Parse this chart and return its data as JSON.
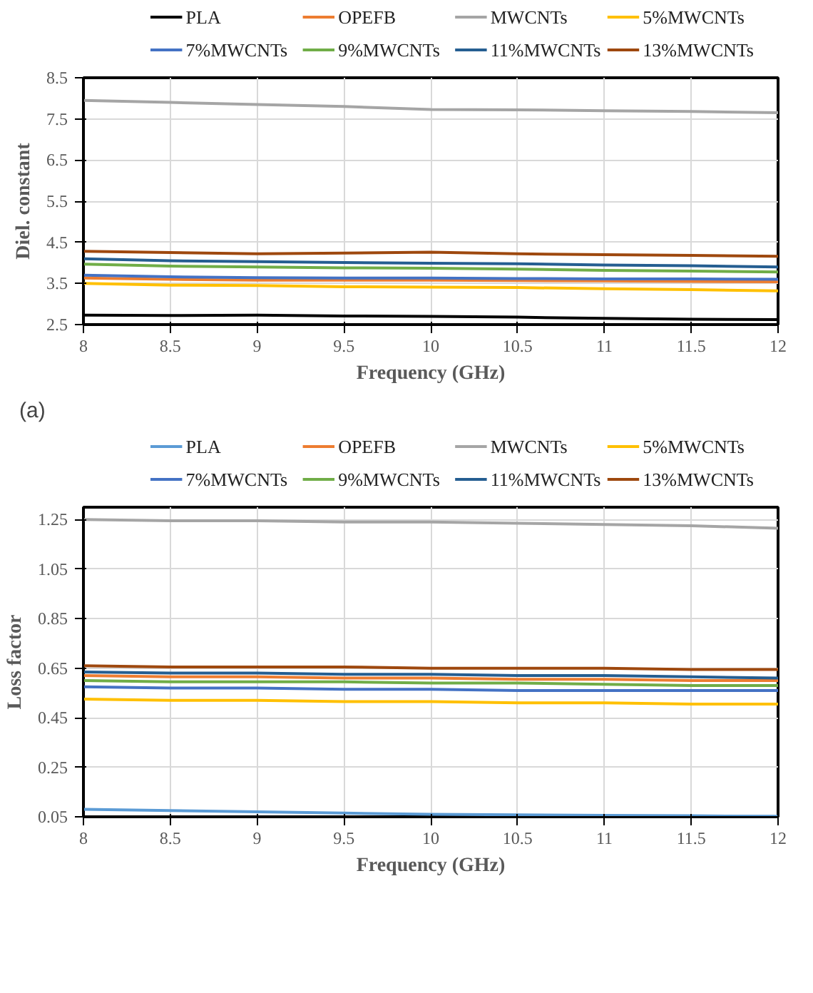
{
  "chart_data": [
    {
      "type": "line",
      "xlabel": "Frequency (GHz)",
      "ylabel": "Diel. constant",
      "annotations": [
        "(a)"
      ],
      "x": [
        8,
        8.5,
        9,
        9.5,
        10,
        10.5,
        11,
        11.5,
        12
      ],
      "xlim": [
        8,
        12
      ],
      "xticks": [
        8,
        8.5,
        9,
        9.5,
        10,
        10.5,
        11,
        11.5,
        12
      ],
      "ylim": [
        2.5,
        8.5
      ],
      "yticks": [
        2.5,
        3.5,
        4.5,
        5.5,
        6.5,
        7.5,
        8.5
      ],
      "grid": true,
      "legend": "top",
      "marker": "none",
      "line_style": "solid",
      "series": [
        {
          "name": "PLA",
          "color": "#000000",
          "values": [
            2.73,
            2.72,
            2.73,
            2.71,
            2.7,
            2.68,
            2.65,
            2.63,
            2.62
          ]
        },
        {
          "name": "OPEFB",
          "color": "#ed7d31",
          "values": [
            3.63,
            3.6,
            3.58,
            3.58,
            3.58,
            3.57,
            3.56,
            3.55,
            3.54
          ]
        },
        {
          "name": "MWCNTs",
          "color": "#a5a5a5",
          "values": [
            7.95,
            7.9,
            7.85,
            7.8,
            7.73,
            7.72,
            7.7,
            7.68,
            7.65
          ]
        },
        {
          "name": "5%MWCNTs",
          "color": "#ffc000",
          "values": [
            3.5,
            3.46,
            3.45,
            3.42,
            3.41,
            3.4,
            3.37,
            3.35,
            3.32
          ]
        },
        {
          "name": "7%MWCNTs",
          "color": "#4472c4",
          "values": [
            3.7,
            3.66,
            3.64,
            3.63,
            3.63,
            3.62,
            3.61,
            3.61,
            3.6
          ]
        },
        {
          "name": "9%MWCNTs",
          "color": "#70ad47",
          "values": [
            3.97,
            3.92,
            3.9,
            3.88,
            3.87,
            3.85,
            3.82,
            3.8,
            3.78
          ]
        },
        {
          "name": "11%MWCNTs",
          "color": "#255e91",
          "values": [
            4.1,
            4.05,
            4.03,
            4.01,
            3.99,
            3.98,
            3.95,
            3.93,
            3.9
          ]
        },
        {
          "name": "13%MWCNTs",
          "color": "#9e480e",
          "values": [
            4.28,
            4.25,
            4.22,
            4.24,
            4.26,
            4.22,
            4.2,
            4.18,
            4.16
          ]
        }
      ]
    },
    {
      "type": "line",
      "xlabel": "Frequency (GHz)",
      "ylabel": "Loss factor",
      "x": [
        8,
        8.5,
        9,
        9.5,
        10,
        10.5,
        11,
        11.5,
        12
      ],
      "xlim": [
        8,
        12
      ],
      "xticks": [
        8,
        8.5,
        9,
        9.5,
        10,
        10.5,
        11,
        11.5,
        12
      ],
      "ylim": [
        0.05,
        1.3
      ],
      "yticks": [
        0.05,
        0.25,
        0.45,
        0.65,
        0.85,
        1.05,
        1.25
      ],
      "grid": true,
      "legend": "top",
      "marker": "none",
      "line_style": "solid",
      "series": [
        {
          "name": "PLA",
          "color": "#5b9bd5",
          "values": [
            0.08,
            0.075,
            0.07,
            0.065,
            0.06,
            0.058,
            0.056,
            0.054,
            0.052
          ]
        },
        {
          "name": "OPEFB",
          "color": "#ed7d31",
          "values": [
            0.62,
            0.615,
            0.615,
            0.61,
            0.61,
            0.605,
            0.605,
            0.6,
            0.6
          ]
        },
        {
          "name": "MWCNTs",
          "color": "#a5a5a5",
          "values": [
            1.25,
            1.245,
            1.245,
            1.24,
            1.24,
            1.235,
            1.23,
            1.225,
            1.215
          ]
        },
        {
          "name": "5%MWCNTs",
          "color": "#ffc000",
          "values": [
            0.525,
            0.52,
            0.52,
            0.515,
            0.515,
            0.51,
            0.51,
            0.505,
            0.505
          ]
        },
        {
          "name": "7%MWCNTs",
          "color": "#4472c4",
          "values": [
            0.575,
            0.57,
            0.57,
            0.565,
            0.565,
            0.56,
            0.56,
            0.56,
            0.56
          ]
        },
        {
          "name": "9%MWCNTs",
          "color": "#70ad47",
          "values": [
            0.6,
            0.595,
            0.595,
            0.595,
            0.59,
            0.59,
            0.585,
            0.58,
            0.58
          ]
        },
        {
          "name": "11%MWCNTs",
          "color": "#255e91",
          "values": [
            0.635,
            0.63,
            0.63,
            0.625,
            0.625,
            0.62,
            0.62,
            0.615,
            0.61
          ]
        },
        {
          "name": "13%MWCNTs",
          "color": "#9e480e",
          "values": [
            0.66,
            0.655,
            0.655,
            0.655,
            0.65,
            0.65,
            0.65,
            0.645,
            0.645
          ]
        }
      ]
    }
  ]
}
